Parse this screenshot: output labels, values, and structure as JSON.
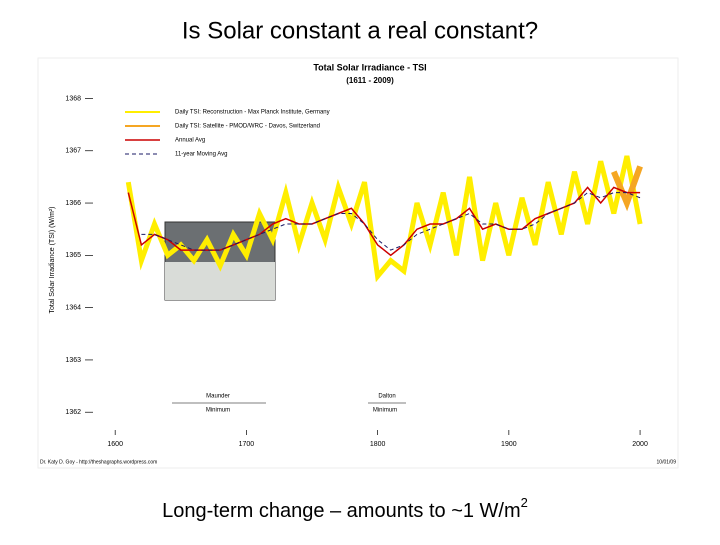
{
  "slide": {
    "title": "Is Solar constant a real constant?",
    "caption": "Long-term change – amounts to ~1 W/m",
    "caption_sup": "2"
  },
  "chart_data": {
    "type": "line",
    "title": "Total Solar Irradiance - TSI",
    "subtitle": "(1611 - 2009)",
    "y_label": "Total Solar Irradiance (TSI) (W/m²)",
    "annotations": [
      "Maunder",
      "Minimum",
      "Dalton",
      "Minimum"
    ],
    "footer_left": "Dr. Katy D. Goy - http://theshagraphs.wordpress.com",
    "footer_right": "10/01/09",
    "x": [
      1610,
      1620,
      1630,
      1640,
      1650,
      1660,
      1670,
      1680,
      1690,
      1700,
      1710,
      1720,
      1730,
      1740,
      1750,
      1760,
      1770,
      1780,
      1790,
      1800,
      1810,
      1820,
      1830,
      1840,
      1850,
      1860,
      1870,
      1880,
      1890,
      1900,
      1910,
      1920,
      1930,
      1940,
      1950,
      1960,
      1970,
      1980,
      1990,
      2000
    ],
    "xlim": [
      1577,
      2019
    ],
    "xticks": [
      1600,
      1700,
      1800,
      1900,
      2000
    ],
    "ylim": [
      1361.66,
      1368.2
    ],
    "yticks": [
      1362,
      1363,
      1364,
      1365,
      1366,
      1367,
      1368
    ],
    "legend": "top-left",
    "series": [
      {
        "name": "Daily TSI: Reconstruction - Max Planck Institute, Germany",
        "color": "#ffee00",
        "values": [
          1366.4,
          1364.9,
          1365.6,
          1365.0,
          1365.2,
          1364.9,
          1365.3,
          1364.8,
          1365.4,
          1365.0,
          1365.8,
          1365.3,
          1366.2,
          1365.2,
          1366.0,
          1365.3,
          1366.3,
          1365.6,
          1366.4,
          1364.6,
          1364.9,
          1364.7,
          1366.0,
          1365.2,
          1366.2,
          1365.0,
          1366.5,
          1364.9,
          1366.0,
          1365.0,
          1366.1,
          1365.2,
          1366.4,
          1365.4,
          1366.6,
          1365.6,
          1366.8,
          1365.8,
          1366.9,
          1365.6
        ],
        "width": 5
      },
      {
        "name": "Daily TSI: Satellite - PMOD/WRC - Davos, Switzerland",
        "color": "#f5a623",
        "values": [
          null,
          null,
          null,
          null,
          null,
          null,
          null,
          null,
          null,
          null,
          null,
          null,
          null,
          null,
          null,
          null,
          null,
          null,
          null,
          null,
          null,
          null,
          null,
          null,
          null,
          null,
          null,
          null,
          null,
          null,
          null,
          null,
          null,
          null,
          null,
          null,
          null,
          1366.6,
          1366.0,
          1366.7
        ],
        "width": 6
      },
      {
        "name": "Annual Avg",
        "color": "#cc0000",
        "values": [
          1366.2,
          1365.2,
          1365.4,
          1365.3,
          1365.1,
          1365.1,
          1365.1,
          1365.1,
          1365.2,
          1365.3,
          1365.4,
          1365.6,
          1365.7,
          1365.6,
          1365.6,
          1365.7,
          1365.8,
          1365.9,
          1365.6,
          1365.2,
          1365.0,
          1365.2,
          1365.5,
          1365.6,
          1365.6,
          1365.7,
          1365.9,
          1365.5,
          1365.6,
          1365.5,
          1365.5,
          1365.7,
          1365.8,
          1365.9,
          1366.0,
          1366.3,
          1366.0,
          1366.3,
          1366.2,
          1366.2
        ],
        "width": 1.5
      },
      {
        "name": "11-year Moving Avg",
        "color": "#1a1a66",
        "values": [
          null,
          1365.4,
          1365.4,
          1365.3,
          1365.2,
          1365.1,
          1365.1,
          1365.1,
          1365.2,
          1365.3,
          1365.4,
          1365.5,
          1365.6,
          1365.6,
          1365.6,
          1365.7,
          1365.8,
          1365.8,
          1365.6,
          1365.3,
          1365.1,
          1365.2,
          1365.4,
          1365.5,
          1365.6,
          1365.7,
          1365.8,
          1365.6,
          1365.6,
          1365.5,
          1365.5,
          1365.6,
          1365.8,
          1365.9,
          1366.0,
          1366.2,
          1366.1,
          1366.2,
          1366.2,
          1366.1
        ],
        "width": 1,
        "dash": "4 3"
      }
    ]
  }
}
